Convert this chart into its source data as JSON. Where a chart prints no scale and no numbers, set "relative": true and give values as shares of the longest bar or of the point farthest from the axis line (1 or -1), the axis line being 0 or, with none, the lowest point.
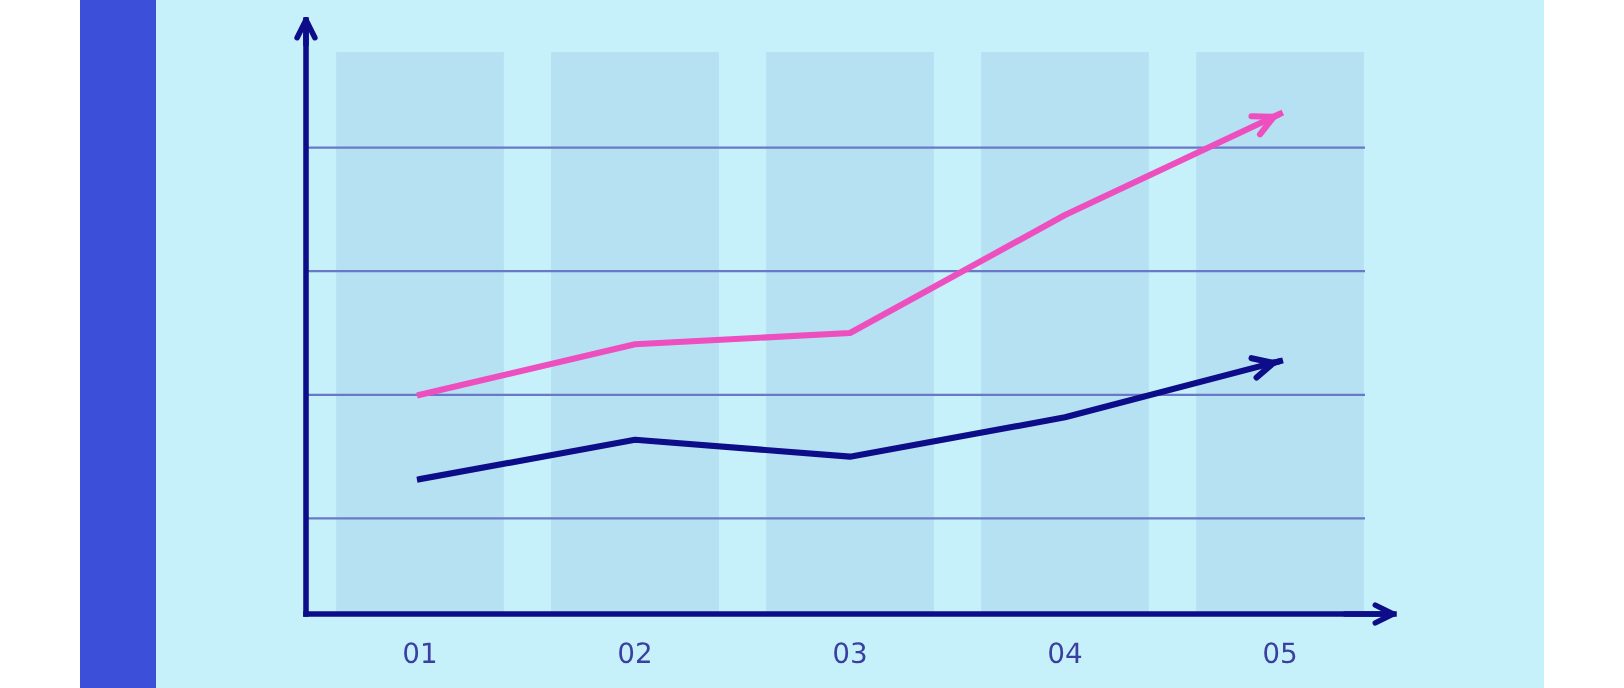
{
  "chart_data": {
    "type": "bar",
    "relative": true,
    "categories": [
      "01",
      "02",
      "03",
      "04",
      "05"
    ],
    "values": [
      1,
      1,
      1,
      1,
      1
    ],
    "color": "#a9d4ec",
    "series": [
      {
        "type": "line",
        "color": "#ee4fbf",
        "values": [
          0.39,
          0.48,
          0.5,
          0.71,
          0.89
        ]
      },
      {
        "type": "line",
        "color": "#0d0d8a",
        "values": [
          0.24,
          0.31,
          0.28,
          0.35,
          0.45
        ]
      }
    ],
    "ref_lines": [
      {
        "axis": "y",
        "value": 0.83,
        "color": "#6a78c8"
      },
      {
        "axis": "y",
        "value": 0.61,
        "color": "#6a78c8"
      },
      {
        "axis": "y",
        "value": 0.39,
        "color": "#6a78c8"
      },
      {
        "axis": "y",
        "value": 0.17,
        "color": "#6a78c8"
      }
    ],
    "marker": "none",
    "line_style": "solid",
    "grid": false,
    "legend": false
  }
}
